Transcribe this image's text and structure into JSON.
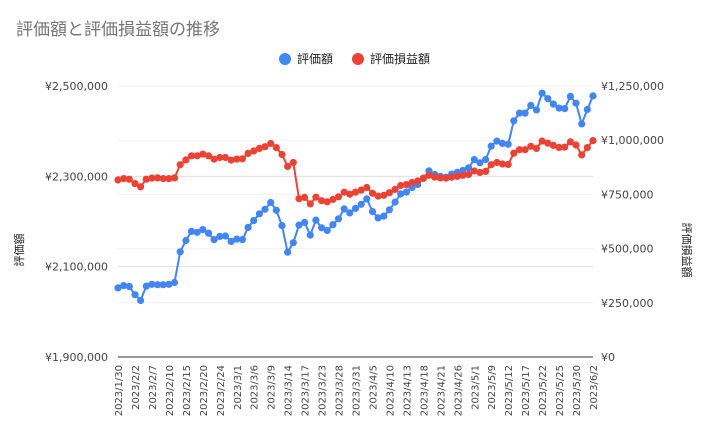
{
  "chart_data": {
    "type": "line",
    "title": "評価額と評価損益額の推移",
    "ylabel": "評価額",
    "y2label": "評価損益額",
    "legend_position": "top-center",
    "ylim": [
      1900000,
      2500000
    ],
    "y2lim": [
      0,
      1250000
    ],
    "y_ticks": [
      "¥1,900,000",
      "¥2,100,000",
      "¥2,300,000",
      "¥2,500,000"
    ],
    "y2_ticks": [
      "¥0",
      "¥250,000",
      "¥500,000",
      "¥750,000",
      "¥1,000,000",
      "¥1,250,000"
    ],
    "x_tick_labels": [
      "2023/1/30",
      "2023/2/2",
      "2023/2/7",
      "2023/2/10",
      "2023/2/15",
      "2023/2/20",
      "2023/2/24",
      "2023/3/1",
      "2023/3/6",
      "2023/3/9",
      "2023/3/14",
      "2023/3/17",
      "2023/3/23",
      "2023/3/28",
      "2023/3/31",
      "2023/4/5",
      "2023/4/10",
      "2023/4/13",
      "2023/4/18",
      "2023/4/21",
      "2023/4/26",
      "2023/5/1",
      "2023/5/9",
      "2023/5/12",
      "2023/5/17",
      "2023/5/22",
      "2023/5/25",
      "2023/5/30",
      "2023/6/2"
    ],
    "grid": true,
    "series": [
      {
        "name": "評価額",
        "color": "#4285f4",
        "axis": "left",
        "values": [
          2053000,
          2058000,
          2056000,
          2038000,
          2025000,
          2057000,
          2061000,
          2060000,
          2060000,
          2061000,
          2065000,
          2133000,
          2158000,
          2178000,
          2176000,
          2182000,
          2174000,
          2160000,
          2167000,
          2168000,
          2156000,
          2161000,
          2160000,
          2187000,
          2202000,
          2217000,
          2227000,
          2242000,
          2225000,
          2191000,
          2132000,
          2153000,
          2192000,
          2198000,
          2170000,
          2203000,
          2186000,
          2180000,
          2193000,
          2206000,
          2228000,
          2219000,
          2229000,
          2238000,
          2250000,
          2222000,
          2208000,
          2212000,
          2226000,
          2243000,
          2261000,
          2265000,
          2275000,
          2282000,
          2296000,
          2312000,
          2304000,
          2300000,
          2298000,
          2305000,
          2309000,
          2313000,
          2319000,
          2337000,
          2330000,
          2337000,
          2367000,
          2378000,
          2373000,
          2371000,
          2423000,
          2440000,
          2440000,
          2457000,
          2447000,
          2484000,
          2472000,
          2460000,
          2451000,
          2450000,
          2477000,
          2462000,
          2416000,
          2448000,
          2478000
        ]
      },
      {
        "name": "評価損益額",
        "color": "#ea4335",
        "axis": "right",
        "values": [
          817000,
          823000,
          820000,
          800000,
          785000,
          820000,
          825000,
          826000,
          823000,
          823000,
          826000,
          887000,
          909000,
          928000,
          928000,
          936000,
          928000,
          913000,
          920000,
          920000,
          908000,
          913000,
          914000,
          939000,
          950000,
          962000,
          970000,
          985000,
          966000,
          934000,
          879000,
          897000,
          730000,
          736000,
          706000,
          737000,
          721000,
          716000,
          727000,
          739000,
          760000,
          751000,
          760000,
          770000,
          782000,
          755000,
          742000,
          746000,
          758000,
          773000,
          791000,
          795000,
          805000,
          812000,
          824000,
          838000,
          830000,
          826000,
          825000,
          830000,
          833000,
          838000,
          842000,
          858000,
          851000,
          856000,
          887000,
          897000,
          890000,
          888000,
          940000,
          956000,
          956000,
          972000,
          962000,
          996000,
          986000,
          976000,
          967000,
          968000,
          992000,
          978000,
          932000,
          966000,
          998000
        ]
      }
    ]
  }
}
